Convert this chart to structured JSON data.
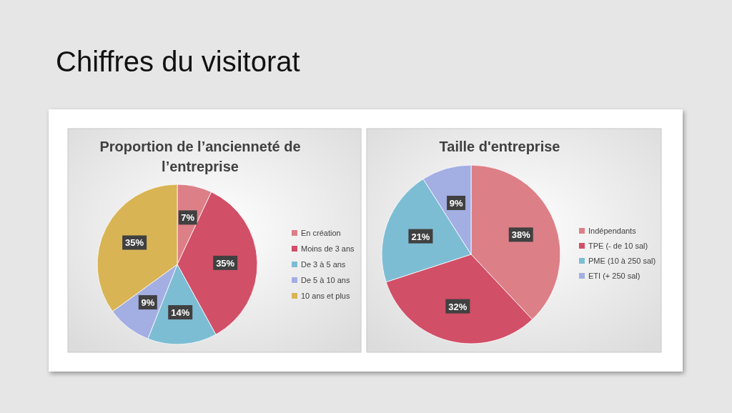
{
  "chart_data": [
    {
      "type": "other",
      "title": "Chiffres du visitorat"
    },
    {
      "type": "pie",
      "title": "Proportion de l’ancienneté de l’entreprise",
      "categories": [
        "En création",
        "Moins de 3 ans",
        "De 3 à 5 ans",
        "De 5 à 10 ans",
        "10 ans et plus"
      ],
      "values": [
        7,
        35,
        14,
        9,
        35
      ],
      "colors": [
        "#dc7f87",
        "#d14f67",
        "#7dbdd4",
        "#a3aee3",
        "#d8b455"
      ],
      "value_labels": [
        "7%",
        "35%",
        "14%",
        "9%",
        "35%"
      ],
      "legend": "right"
    },
    {
      "type": "pie",
      "title": "Taille d'entreprise",
      "categories": [
        "Indépendants",
        "TPE (- de 10 sal)",
        "PME (10 à 250 sal)",
        "ETI (+ 250 sal)"
      ],
      "values": [
        38,
        32,
        21,
        9
      ],
      "colors": [
        "#dc7f87",
        "#d14f67",
        "#7dbdd4",
        "#a3aee3"
      ],
      "value_labels": [
        "38%",
        "32%",
        "21%",
        "9%"
      ],
      "legend": "right"
    }
  ]
}
